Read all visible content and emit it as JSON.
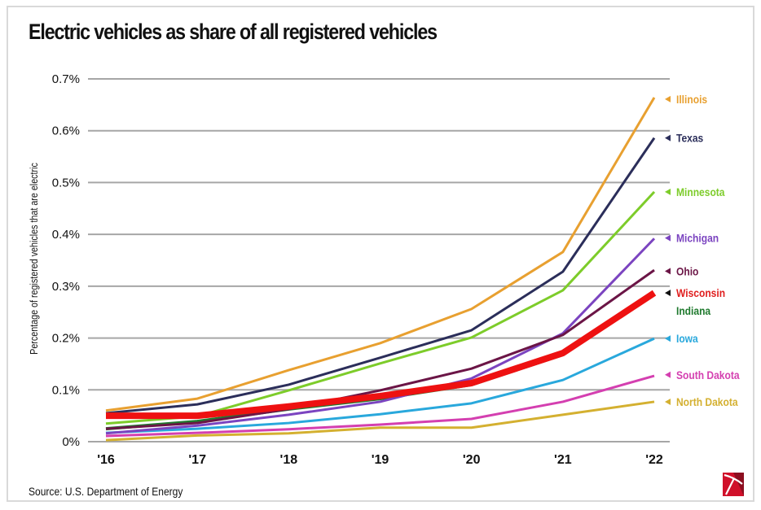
{
  "chart_data": {
    "type": "line",
    "title": "Electric vehicles as share of all registered vehicles",
    "xlabel": "",
    "ylabel": "Percentage of registered vehicles that are electric",
    "x": [
      "'16",
      "'17",
      "'18",
      "'19",
      "'20",
      "'21",
      "'22"
    ],
    "yticks": [
      "0%",
      "0.1%",
      "0.2%",
      "0.3%",
      "0.4%",
      "0.5%",
      "0.6%",
      "0.7%"
    ],
    "ylim": [
      0,
      0.7
    ],
    "grid": true,
    "legend": "right, direct labels at line ends",
    "series": [
      {
        "name": "North Dakota",
        "color": "#d4b030",
        "width": 3,
        "values": [
          0.003,
          0.012,
          0.016,
          0.027,
          0.027,
          0.052,
          0.077
        ]
      },
      {
        "name": "South Dakota",
        "color": "#d43fb0",
        "width": 3,
        "values": [
          0.011,
          0.017,
          0.024,
          0.033,
          0.044,
          0.077,
          0.127
        ]
      },
      {
        "name": "Iowa",
        "color": "#29a8dc",
        "width": 3,
        "values": [
          0.017,
          0.025,
          0.036,
          0.053,
          0.074,
          0.119,
          0.199
        ]
      },
      {
        "name": "Indiana",
        "color": "#1f7a2e",
        "width": 4,
        "values": [
          0.025,
          0.039,
          0.063,
          0.083,
          0.11,
          0.168,
          0.285
        ]
      },
      {
        "name": "Michigan",
        "color": "#7b44c0",
        "width": 3,
        "values": [
          0.016,
          0.031,
          0.052,
          0.077,
          0.122,
          0.209,
          0.392
        ]
      },
      {
        "name": "Ohio",
        "color": "#6b1546",
        "width": 3,
        "values": [
          0.025,
          0.036,
          0.063,
          0.099,
          0.141,
          0.206,
          0.331
        ]
      },
      {
        "name": "Minnesota",
        "color": "#7dcc2a",
        "width": 3,
        "values": [
          0.035,
          0.049,
          0.099,
          0.151,
          0.201,
          0.292,
          0.482
        ]
      },
      {
        "name": "Texas",
        "color": "#2b2e5a",
        "width": 3,
        "values": [
          0.055,
          0.072,
          0.11,
          0.162,
          0.215,
          0.328,
          0.586
        ]
      },
      {
        "name": "Illinois",
        "color": "#e8a030",
        "width": 3,
        "values": [
          0.06,
          0.083,
          0.138,
          0.19,
          0.256,
          0.366,
          0.664
        ]
      },
      {
        "name": "Wisconsin",
        "color": "#ee1111",
        "width": 8,
        "values": [
          0.05,
          0.05,
          0.068,
          0.088,
          0.113,
          0.171,
          0.287
        ]
      }
    ],
    "labels": [
      {
        "name": "Illinois",
        "color": "#e8a030",
        "marker_color": "#e8a030",
        "y_value": 0.661
      },
      {
        "name": "Texas",
        "color": "#2b2e5a",
        "marker_color": "#2b2e5a",
        "y_value": 0.586
      },
      {
        "name": "Minnesota",
        "color": "#7dcc2a",
        "marker_color": "#7dcc2a",
        "y_value": 0.482
      },
      {
        "name": "Michigan",
        "color": "#7b44c0",
        "marker_color": "#7b44c0",
        "y_value": 0.393
      },
      {
        "name": "Ohio",
        "color": "#6b1546",
        "marker_color": "#6b1546",
        "y_value": 0.329
      },
      {
        "name": "Wisconsin",
        "color": "#e02020",
        "marker_color": "#111111",
        "y_value": 0.287
      },
      {
        "name": "Indiana",
        "color": "#1f7a2e",
        "marker_color": null,
        "y_value": 0.253
      },
      {
        "name": "Iowa",
        "color": "#29a8dc",
        "marker_color": "#29a8dc",
        "y_value": 0.199
      },
      {
        "name": "South Dakota",
        "color": "#d43fb0",
        "marker_color": "#d43fb0",
        "y_value": 0.129
      },
      {
        "name": "North Dakota",
        "color": "#d4b030",
        "marker_color": "#d4b030",
        "y_value": 0.077
      }
    ]
  },
  "footer": {
    "source": "Source:  U.S. Department of Energy",
    "logo": "publisher-logo-icon"
  }
}
